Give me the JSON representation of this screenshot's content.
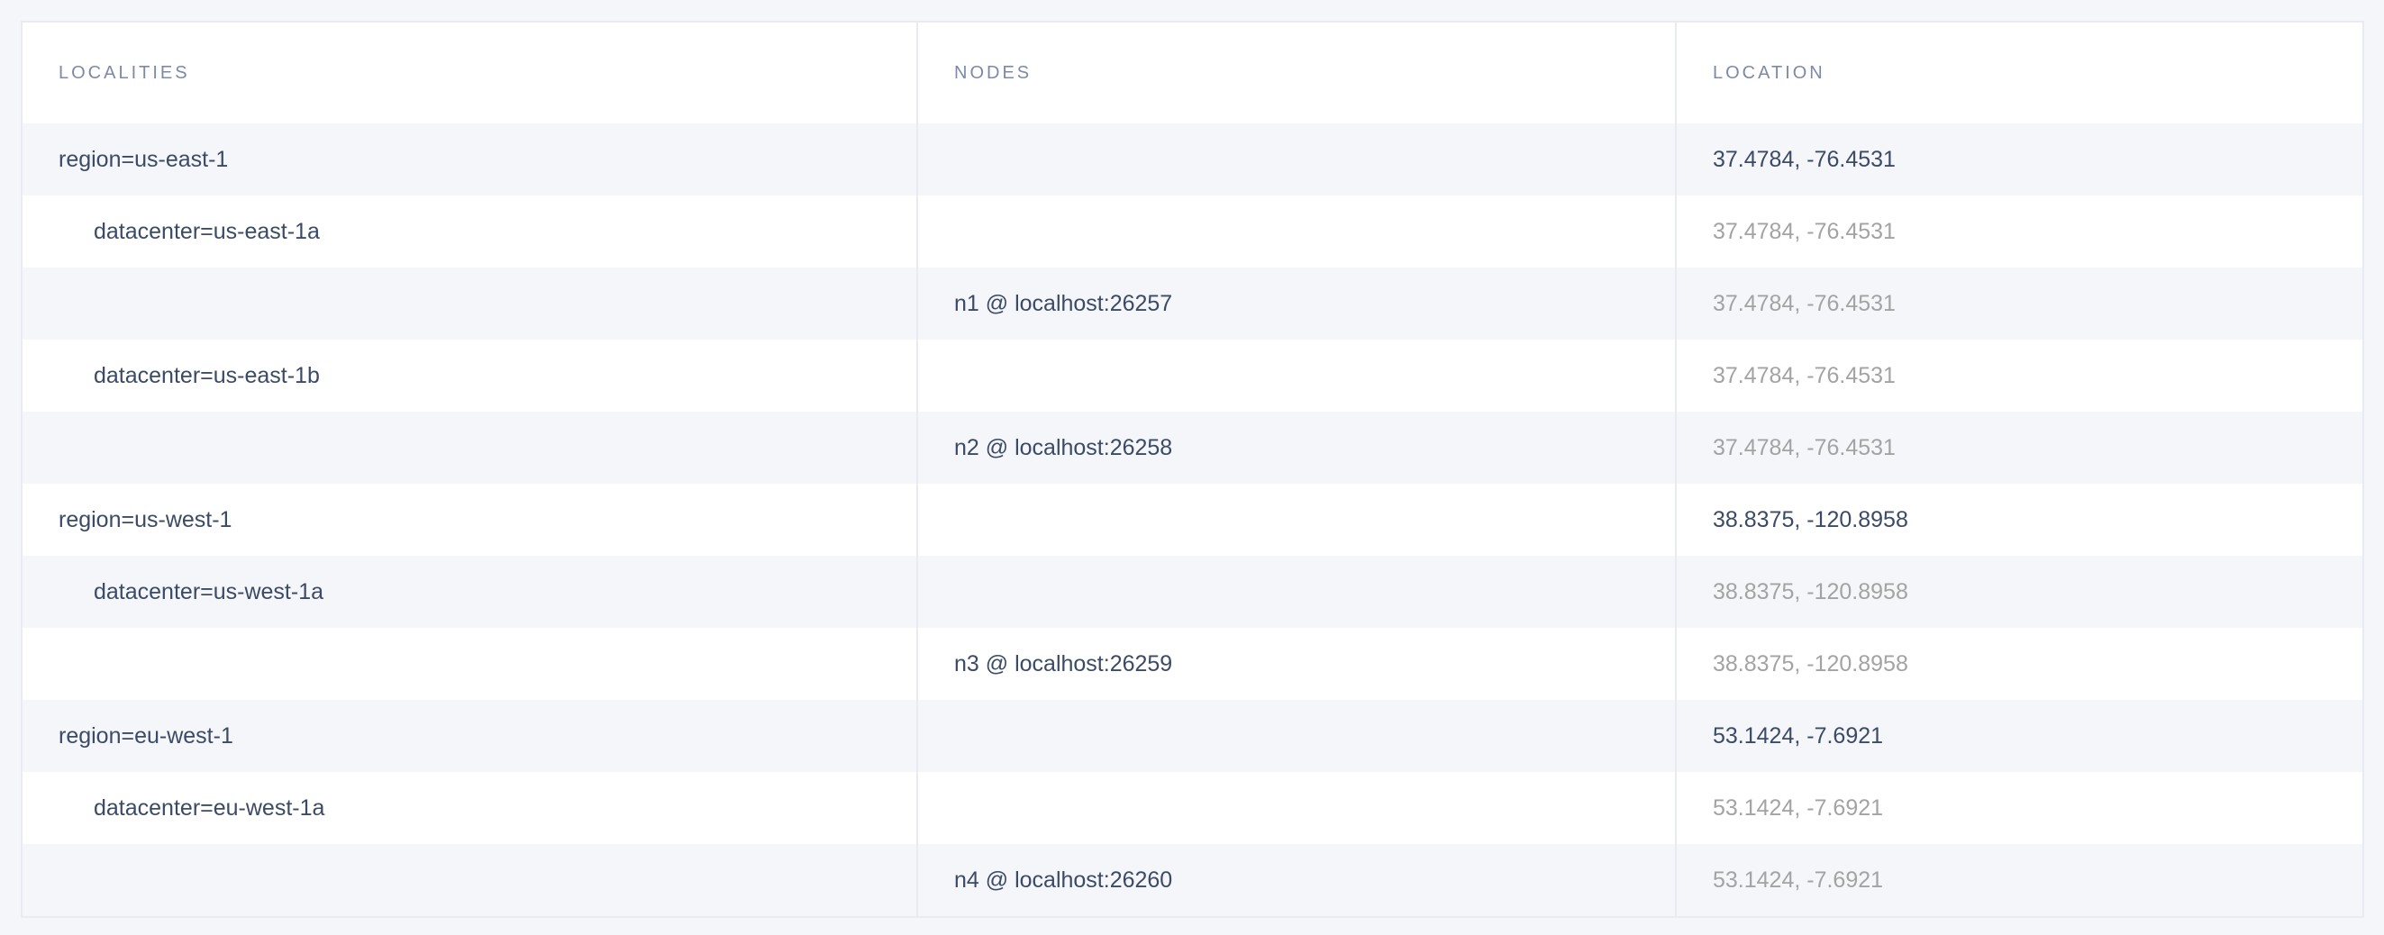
{
  "columns": {
    "localities": "LOCALITIES",
    "nodes": "NODES",
    "location": "LOCATION"
  },
  "colors": {
    "text": "#3b4a66",
    "muted": "#a3a3a3",
    "header": "#7e89a9",
    "stripe": "#f5f6fa"
  },
  "rows": [
    {
      "locality": "region=us-east-1",
      "node": "",
      "location": "37.4784, -76.4531",
      "level": 0
    },
    {
      "locality": "datacenter=us-east-1a",
      "node": "",
      "location": "37.4784, -76.4531",
      "level": 1
    },
    {
      "locality": "",
      "node": "n1 @ localhost:26257",
      "location": "37.4784, -76.4531",
      "level": 2
    },
    {
      "locality": "datacenter=us-east-1b",
      "node": "",
      "location": "37.4784, -76.4531",
      "level": 1
    },
    {
      "locality": "",
      "node": "n2 @ localhost:26258",
      "location": "37.4784, -76.4531",
      "level": 2
    },
    {
      "locality": "region=us-west-1",
      "node": "",
      "location": "38.8375, -120.8958",
      "level": 0
    },
    {
      "locality": "datacenter=us-west-1a",
      "node": "",
      "location": "38.8375, -120.8958",
      "level": 1
    },
    {
      "locality": "",
      "node": "n3 @ localhost:26259",
      "location": "38.8375, -120.8958",
      "level": 2
    },
    {
      "locality": "region=eu-west-1",
      "node": "",
      "location": "53.1424, -7.6921",
      "level": 0
    },
    {
      "locality": "datacenter=eu-west-1a",
      "node": "",
      "location": "53.1424, -7.6921",
      "level": 1
    },
    {
      "locality": "",
      "node": "n4 @ localhost:26260",
      "location": "53.1424, -7.6921",
      "level": 2
    }
  ]
}
